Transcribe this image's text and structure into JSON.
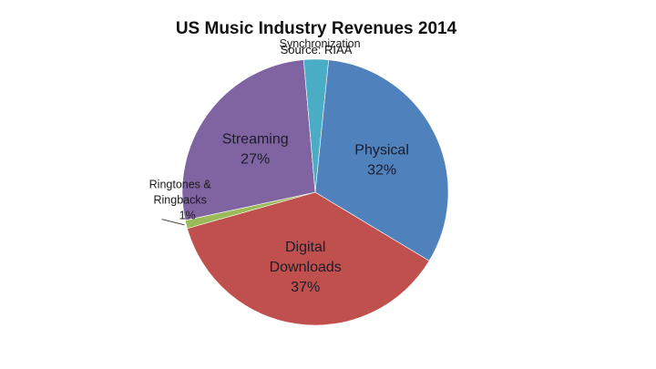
{
  "chart_data": {
    "type": "pie",
    "title": "US Music Industry Revenues 2014",
    "subtitle": "Source: RIAA",
    "slices": [
      {
        "label": "Digital Downloads",
        "label_lines": [
          "Digital",
          "Downloads"
        ],
        "value": 37,
        "value_label": "37%",
        "color": "#c0504d",
        "label_style": "inside"
      },
      {
        "label": "Ringtones & Ringbacks",
        "label_lines": [
          "Ringtones &",
          "Ringbacks"
        ],
        "value": 1,
        "value_label": "1%",
        "color": "#9bbb59",
        "label_style": "outside-leader"
      },
      {
        "label": "Streaming",
        "label_lines": [
          "Streaming"
        ],
        "value": 27,
        "value_label": "27%",
        "color": "#8064a2",
        "label_style": "inside"
      },
      {
        "label": "Synchronization",
        "label_lines": [
          "Synchronization"
        ],
        "value": 3,
        "value_label": "",
        "color": "#4bacc6",
        "label_style": "outside"
      },
      {
        "label": "Physical",
        "label_lines": [
          "Physical"
        ],
        "value": 32,
        "value_label": "32%",
        "color": "#4f81bd",
        "label_style": "inside"
      }
    ]
  }
}
